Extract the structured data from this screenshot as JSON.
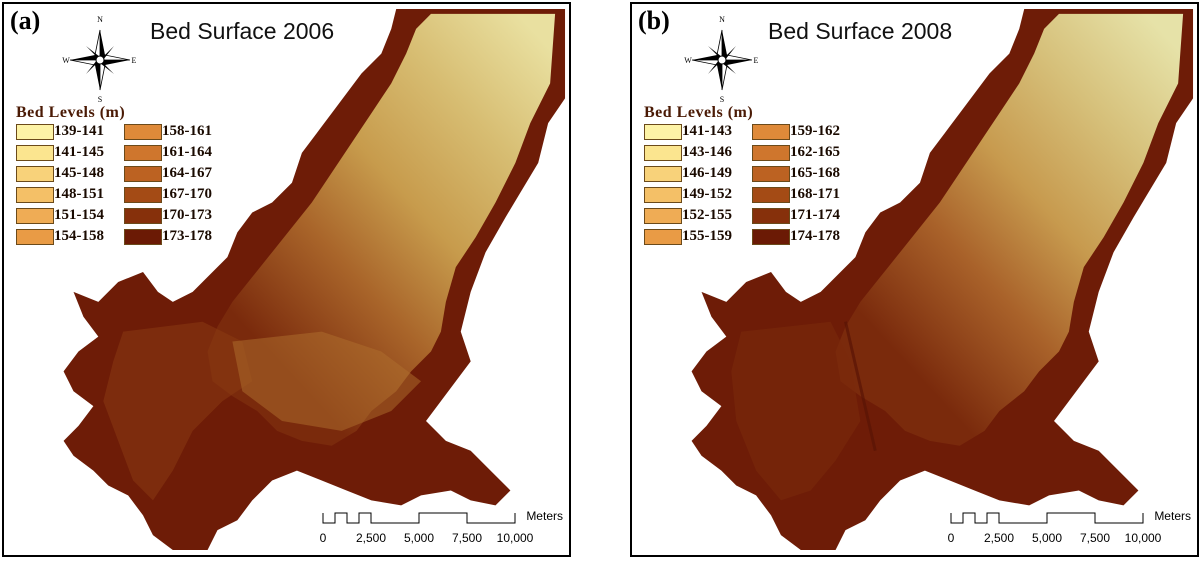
{
  "panels": [
    {
      "letter": "(a)",
      "title": "Bed Surface 2006",
      "compass": {
        "n": "N",
        "s": "S",
        "e": "E",
        "w": "W"
      },
      "legend_title": "Bed Levels (m)",
      "legend": [
        {
          "label": "139-141",
          "color": "#fdf3a6"
        },
        {
          "label": "141-145",
          "color": "#fbe58f"
        },
        {
          "label": "145-148",
          "color": "#f8d27a"
        },
        {
          "label": "148-151",
          "color": "#f4c067"
        },
        {
          "label": "151-154",
          "color": "#efac55"
        },
        {
          "label": "154-158",
          "color": "#e99b45"
        },
        {
          "label": "158-161",
          "color": "#df8a39"
        },
        {
          "label": "161-164",
          "color": "#cf762d"
        },
        {
          "label": "164-167",
          "color": "#bc6222"
        },
        {
          "label": "167-170",
          "color": "#a44b15"
        },
        {
          "label": "170-173",
          "color": "#86300b"
        },
        {
          "label": "173-178",
          "color": "#6b1a05"
        }
      ],
      "scale": {
        "unit": "Meters",
        "ticks": [
          "0",
          "2,500",
          "5,000",
          "7,500",
          "10,000"
        ]
      }
    },
    {
      "letter": "(b)",
      "title": "Bed Surface 2008",
      "compass": {
        "n": "N",
        "s": "S",
        "e": "E",
        "w": "W"
      },
      "legend_title": "Bed Levels (m)",
      "legend": [
        {
          "label": "141-143",
          "color": "#fdf3a6"
        },
        {
          "label": "143-146",
          "color": "#fbe58f"
        },
        {
          "label": "146-149",
          "color": "#f8d27a"
        },
        {
          "label": "149-152",
          "color": "#f4c067"
        },
        {
          "label": "152-155",
          "color": "#efac55"
        },
        {
          "label": "155-159",
          "color": "#e99b45"
        },
        {
          "label": "159-162",
          "color": "#df8a39"
        },
        {
          "label": "162-165",
          "color": "#cf762d"
        },
        {
          "label": "165-168",
          "color": "#bc6222"
        },
        {
          "label": "168-171",
          "color": "#a44b15"
        },
        {
          "label": "171-174",
          "color": "#86300b"
        },
        {
          "label": "174-178",
          "color": "#6b1a05"
        }
      ],
      "scale": {
        "unit": "Meters",
        "ticks": [
          "0",
          "2,500",
          "5,000",
          "7,500",
          "10,000"
        ]
      }
    }
  ]
}
